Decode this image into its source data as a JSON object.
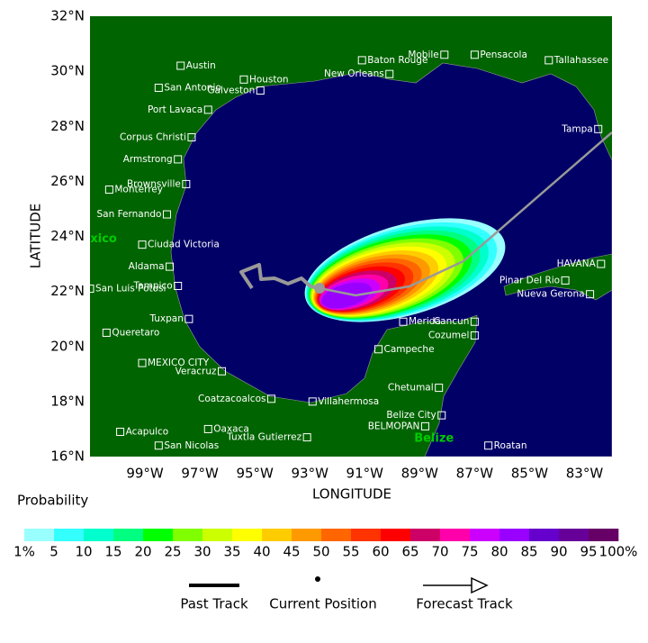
{
  "map": {
    "xlabel": "LONGITUDE",
    "ylabel": "LATITUDE",
    "xlim": [
      -101,
      -82
    ],
    "ylim": [
      16,
      32
    ],
    "xticks": [
      {
        "value": -99,
        "label": "99°W"
      },
      {
        "value": -97,
        "label": "97°W"
      },
      {
        "value": -95,
        "label": "95°W"
      },
      {
        "value": -93,
        "label": "93°W"
      },
      {
        "value": -91,
        "label": "91°W"
      },
      {
        "value": -89,
        "label": "89°W"
      },
      {
        "value": -87,
        "label": "87°W"
      },
      {
        "value": -85,
        "label": "85°W"
      },
      {
        "value": -83,
        "label": "83°W"
      }
    ],
    "yticks": [
      {
        "value": 16,
        "label": "16°N"
      },
      {
        "value": 18,
        "label": "18°N"
      },
      {
        "value": 20,
        "label": "20°N"
      },
      {
        "value": 22,
        "label": "22°N"
      },
      {
        "value": 24,
        "label": "24°N"
      },
      {
        "value": 26,
        "label": "26°N"
      },
      {
        "value": 28,
        "label": "28°N"
      },
      {
        "value": 30,
        "label": "30°N"
      },
      {
        "value": 32,
        "label": "32°N"
      }
    ],
    "cities": [
      {
        "name": "Austin",
        "lon": -97.7,
        "lat": 30.2,
        "label": "right"
      },
      {
        "name": "San Antonio",
        "lon": -98.5,
        "lat": 29.4,
        "label": "right"
      },
      {
        "name": "Houston",
        "lon": -95.4,
        "lat": 29.7,
        "label": "right"
      },
      {
        "name": "Galveston",
        "lon": -94.8,
        "lat": 29.3,
        "label": "left"
      },
      {
        "name": "Port Lavaca",
        "lon": -96.7,
        "lat": 28.6,
        "label": "left"
      },
      {
        "name": "Corpus Christi",
        "lon": -97.3,
        "lat": 27.6,
        "label": "left"
      },
      {
        "name": "Armstrong",
        "lon": -97.8,
        "lat": 26.8,
        "label": "left"
      },
      {
        "name": "Brownsville",
        "lon": -97.5,
        "lat": 25.9,
        "label": "left"
      },
      {
        "name": "Monterrey",
        "lon": -100.3,
        "lat": 25.7,
        "label": "right"
      },
      {
        "name": "San Fernando",
        "lon": -98.2,
        "lat": 24.8,
        "label": "left"
      },
      {
        "name": "Ciudad Victoria",
        "lon": -99.1,
        "lat": 23.7,
        "label": "right"
      },
      {
        "name": "Aldama",
        "lon": -98.1,
        "lat": 22.9,
        "label": "left"
      },
      {
        "name": "Tampico",
        "lon": -97.8,
        "lat": 22.2,
        "label": "left"
      },
      {
        "name": "San Luis Potosi",
        "lon": -101.0,
        "lat": 22.1,
        "label": "right"
      },
      {
        "name": "Tuxpan",
        "lon": -97.4,
        "lat": 21.0,
        "label": "left"
      },
      {
        "name": "Queretaro",
        "lon": -100.4,
        "lat": 20.5,
        "label": "right"
      },
      {
        "name": "MEXICO CITY",
        "lon": -99.1,
        "lat": 19.4,
        "label": "right"
      },
      {
        "name": "Veracruz",
        "lon": -96.2,
        "lat": 19.1,
        "label": "left"
      },
      {
        "name": "Coatzacoalcos",
        "lon": -94.4,
        "lat": 18.1,
        "label": "left"
      },
      {
        "name": "Villahermosa",
        "lon": -92.9,
        "lat": 18.0,
        "label": "right"
      },
      {
        "name": "Oaxaca",
        "lon": -96.7,
        "lat": 17.0,
        "label": "right"
      },
      {
        "name": "Tuxtla Gutierrez",
        "lon": -93.1,
        "lat": 16.7,
        "label": "left"
      },
      {
        "name": "Acapulco",
        "lon": -99.9,
        "lat": 16.9,
        "label": "right"
      },
      {
        "name": "San Nicolas",
        "lon": -98.5,
        "lat": 16.4,
        "label": "right"
      },
      {
        "name": "Mobile",
        "lon": -88.1,
        "lat": 30.6,
        "label": "left"
      },
      {
        "name": "Pensacola",
        "lon": -87.0,
        "lat": 30.6,
        "label": "right"
      },
      {
        "name": "Tallahassee",
        "lon": -84.3,
        "lat": 30.4,
        "label": "right"
      },
      {
        "name": "Baton Rouge",
        "lon": -91.1,
        "lat": 30.4,
        "label": "right"
      },
      {
        "name": "New Orleans",
        "lon": -90.1,
        "lat": 29.9,
        "label": "left"
      },
      {
        "name": "Tampa",
        "lon": -82.5,
        "lat": 27.9,
        "label": "left"
      },
      {
        "name": "HAVANA",
        "lon": -82.4,
        "lat": 23.0,
        "label": "left"
      },
      {
        "name": "Pinar Del Rio",
        "lon": -83.7,
        "lat": 22.4,
        "label": "left"
      },
      {
        "name": "Nueva Gerona",
        "lon": -82.8,
        "lat": 21.9,
        "label": "left"
      },
      {
        "name": "Merida",
        "lon": -89.6,
        "lat": 20.9,
        "label": "right"
      },
      {
        "name": "Cancun",
        "lon": -87.0,
        "lat": 20.9,
        "label": "left"
      },
      {
        "name": "Cozumel",
        "lon": -87.0,
        "lat": 20.4,
        "label": "left"
      },
      {
        "name": "Campeche",
        "lon": -90.5,
        "lat": 19.9,
        "label": "right"
      },
      {
        "name": "Chetumal",
        "lon": -88.3,
        "lat": 18.5,
        "label": "left"
      },
      {
        "name": "Belize City",
        "lon": -88.2,
        "lat": 17.5,
        "label": "left"
      },
      {
        "name": "BELMOPAN",
        "lon": -88.8,
        "lat": 17.1,
        "label": "left"
      },
      {
        "name": "Roatan",
        "lon": -86.5,
        "lat": 16.4,
        "label": "right"
      }
    ],
    "regions": [
      {
        "name": "Mexico",
        "lon": -101.7,
        "lat": 23.9
      },
      {
        "name": "Belize",
        "lon": -89.2,
        "lat": 16.65
      }
    ]
  },
  "legend": {
    "title": "Probability",
    "levels": [
      {
        "value": 1,
        "label": "1%"
      },
      5,
      10,
      15,
      20,
      25,
      30,
      35,
      40,
      45,
      50,
      55,
      60,
      65,
      70,
      75,
      80,
      85,
      90,
      95,
      {
        "value": 100,
        "label": "100%"
      }
    ],
    "colors": [
      "#99ffff",
      "#33ffff",
      "#00ffcc",
      "#00ff80",
      "#00ff00",
      "#80ff00",
      "#ccff00",
      "#ffff00",
      "#ffcc00",
      "#ff9900",
      "#ff6600",
      "#ff3300",
      "#ff0000",
      "#cc0066",
      "#ff00aa",
      "#cc00ff",
      "#9900ff",
      "#6600cc",
      "#660099",
      "#660066"
    ]
  },
  "track_legend": {
    "past": "Past Track",
    "current": "Current Position",
    "forecast": "Forecast Track"
  }
}
